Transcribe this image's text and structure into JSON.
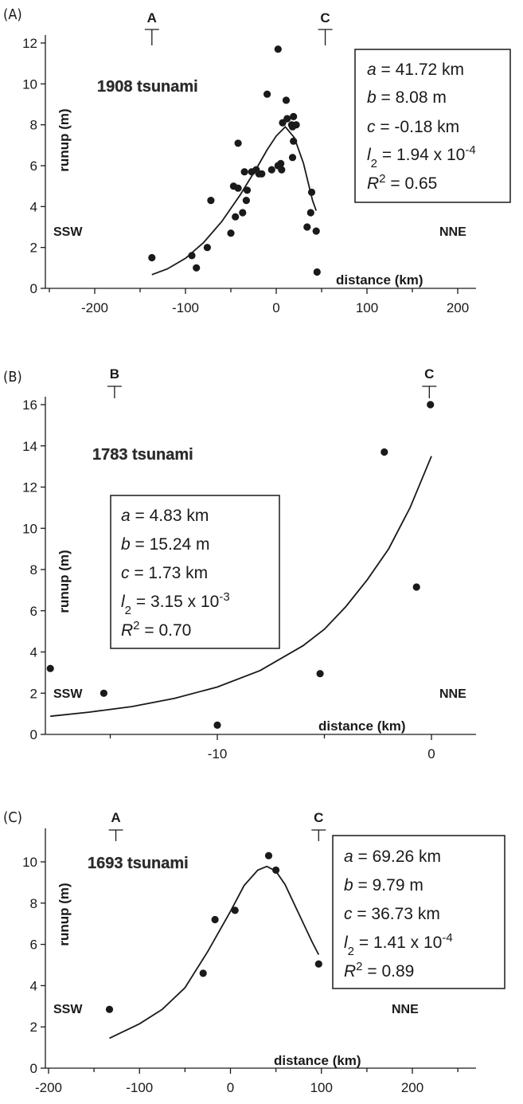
{
  "chart_data": [
    {
      "type": "scatter",
      "panel_label": "(A)",
      "title": "1908 tsunami",
      "ylabel": "runup (m)",
      "xlabel": "distance (km)",
      "xlim": [
        -250,
        215
      ],
      "ylim": [
        0,
        12
      ],
      "xticks": [
        -200,
        -100,
        0,
        100,
        200
      ],
      "yticks": [
        0,
        2,
        4,
        6,
        8,
        10,
        12
      ],
      "grid": false,
      "direction_left": "SSW",
      "direction_right": "NNE",
      "markers": [
        {
          "label": "A",
          "x": -137
        },
        {
          "label": "C",
          "x": 54
        }
      ],
      "series": [
        {
          "type": "scatter",
          "points": [
            [
              -137,
              1.5
            ],
            [
              -93,
              1.6
            ],
            [
              -88,
              1.0
            ],
            [
              -76,
              2.0
            ],
            [
              -72,
              4.3
            ],
            [
              -50,
              2.7
            ],
            [
              -47,
              5.0
            ],
            [
              -45,
              3.5
            ],
            [
              -42,
              7.1
            ],
            [
              -42,
              4.9
            ],
            [
              -37,
              3.7
            ],
            [
              -35,
              5.7
            ],
            [
              -33,
              4.3
            ],
            [
              -32,
              4.8
            ],
            [
              -27,
              5.7
            ],
            [
              -22,
              5.8
            ],
            [
              -19,
              5.6
            ],
            [
              -16,
              5.6
            ],
            [
              -10,
              9.5
            ],
            [
              -5,
              5.8
            ],
            [
              2,
              11.7
            ],
            [
              2,
              6.0
            ],
            [
              5,
              6.1
            ],
            [
              6,
              5.8
            ],
            [
              7,
              8.1
            ],
            [
              11,
              9.2
            ],
            [
              12,
              8.3
            ],
            [
              17,
              8.0
            ],
            [
              18,
              7.9
            ],
            [
              18,
              6.4
            ],
            [
              19,
              8.4
            ],
            [
              19,
              7.2
            ],
            [
              22,
              8.0
            ],
            [
              34,
              3.0
            ],
            [
              38,
              3.7
            ],
            [
              39,
              4.7
            ],
            [
              44,
              2.8
            ],
            [
              45,
              0.8
            ]
          ]
        },
        {
          "type": "line",
          "points": [
            [
              -137,
              0.67
            ],
            [
              -120,
              0.95
            ],
            [
              -100,
              1.47
            ],
            [
              -80,
              2.24
            ],
            [
              -60,
              3.27
            ],
            [
              -40,
              4.55
            ],
            [
              -20,
              6.0
            ],
            [
              -10,
              6.78
            ],
            [
              0,
              7.45
            ],
            [
              10,
              7.9
            ],
            [
              20,
              7.37
            ],
            [
              30,
              6.12
            ],
            [
              40,
              4.3
            ],
            [
              44,
              3.8
            ]
          ]
        }
      ],
      "params": {
        "a": {
          "var": "a",
          "value": " = 41.72 km"
        },
        "b": {
          "var": "b",
          "value": " = 8.08 m"
        },
        "c": {
          "var": "c",
          "value": " = -0.18 km"
        },
        "l2": {
          "var": "l",
          "sub": "2",
          "value": " = 1.94 x 10",
          "sup": "-4"
        },
        "r2": {
          "var": "R",
          "sup": "2",
          "value": " = 0.65"
        }
      }
    },
    {
      "type": "scatter",
      "panel_label": "(B)",
      "title": "1783 tsunami",
      "ylabel": "runup (m)",
      "xlabel": "distance (km)",
      "xlim": [
        -19,
        2
      ],
      "ylim": [
        0,
        16
      ],
      "xticks": [
        -10,
        0
      ],
      "yticks": [
        0,
        2,
        4,
        6,
        8,
        10,
        12,
        14,
        16
      ],
      "grid": false,
      "direction_left": "SSW",
      "direction_right": "NNE",
      "markers": [
        {
          "label": "B",
          "x": -14.8
        },
        {
          "label": "C",
          "x": -0.1
        }
      ],
      "series": [
        {
          "type": "scatter",
          "points": [
            [
              -17.8,
              3.2
            ],
            [
              -15.3,
              2.0
            ],
            [
              -10.0,
              0.45
            ],
            [
              -5.2,
              2.95
            ],
            [
              -2.2,
              13.7
            ],
            [
              -0.7,
              7.15
            ],
            [
              -0.05,
              16.0
            ]
          ]
        },
        {
          "type": "line",
          "points": [
            [
              -17.8,
              0.88
            ],
            [
              -16,
              1.08
            ],
            [
              -14,
              1.35
            ],
            [
              -12,
              1.75
            ],
            [
              -10,
              2.3
            ],
            [
              -8,
              3.1
            ],
            [
              -6,
              4.3
            ],
            [
              -5,
              5.1
            ],
            [
              -4,
              6.2
            ],
            [
              -3,
              7.5
            ],
            [
              -2,
              9.0
            ],
            [
              -1,
              11.0
            ],
            [
              0,
              13.5
            ]
          ]
        }
      ],
      "params": {
        "a": {
          "var": "a",
          "value": " = 4.83 km"
        },
        "b": {
          "var": "b",
          "value": " = 15.24 m"
        },
        "c": {
          "var": "c",
          "value": " = 1.73 km"
        },
        "l2": {
          "var": "l",
          "sub": "2",
          "value": " = 3.15 x 10",
          "sup": "-3"
        },
        "r2": {
          "var": "R",
          "sup": "2",
          "value": " = 0.70"
        }
      }
    },
    {
      "type": "scatter",
      "panel_label": "(C)",
      "title": "1693 tsunami",
      "ylabel": "runup (m)",
      "xlabel": "distance (km)",
      "xlim": [
        -200,
        260
      ],
      "ylim": [
        0,
        11
      ],
      "xticks": [
        -200,
        -100,
        0,
        100,
        200
      ],
      "yticks": [
        0,
        2,
        4,
        6,
        8,
        10
      ],
      "grid": false,
      "direction_left": "SSW",
      "direction_right": "NNE",
      "markers": [
        {
          "label": "A",
          "x": -126
        },
        {
          "label": "C",
          "x": 97
        }
      ],
      "series": [
        {
          "type": "scatter",
          "points": [
            [
              -133,
              2.85
            ],
            [
              -30,
              4.6
            ],
            [
              -17,
              7.2
            ],
            [
              5,
              7.65
            ],
            [
              42,
              10.3
            ],
            [
              50,
              9.6
            ],
            [
              97,
              5.05
            ]
          ]
        },
        {
          "type": "line",
          "points": [
            [
              -133,
              1.45
            ],
            [
              -100,
              2.15
            ],
            [
              -75,
              2.85
            ],
            [
              -50,
              3.9
            ],
            [
              -25,
              5.65
            ],
            [
              0,
              7.6
            ],
            [
              15,
              8.85
            ],
            [
              30,
              9.6
            ],
            [
              40,
              9.78
            ],
            [
              50,
              9.55
            ],
            [
              60,
              8.9
            ],
            [
              75,
              7.5
            ],
            [
              90,
              6.1
            ],
            [
              97,
              5.5
            ]
          ]
        }
      ],
      "params": {
        "a": {
          "var": "a",
          "value": " = 69.26 km"
        },
        "b": {
          "var": "b",
          "value": " = 9.79 m"
        },
        "c": {
          "var": "c",
          "value": " = 36.73 km"
        },
        "l2": {
          "var": "l",
          "sub": "2",
          "value": " = 1.41 x 10",
          "sup": "-4"
        },
        "r2": {
          "var": "R",
          "sup": "2",
          "value": " = 0.89"
        }
      }
    }
  ]
}
